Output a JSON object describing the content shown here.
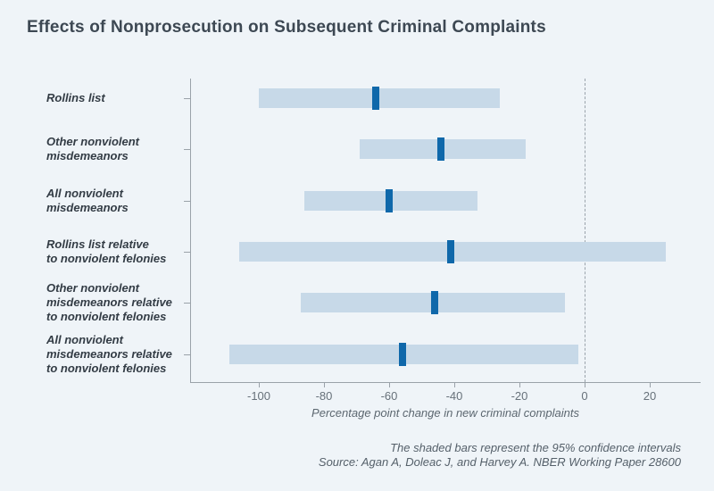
{
  "header": {
    "title": "Effects of Nonprosecution on Subsequent Criminal Complaints"
  },
  "chart_data": {
    "type": "bar",
    "subtype": "horizontal-confidence-interval",
    "title": "Effects of Nonprosecution on Subsequent Criminal Complaints",
    "xlabel": "Percentage point change in new criminal complaints",
    "ylabel": "",
    "xlim": [
      -121,
      36
    ],
    "x_ticks": [
      -100,
      -80,
      -60,
      -40,
      -20,
      0,
      20
    ],
    "zero_reference_line": 0,
    "grid": false,
    "legend": "none",
    "categories": [
      "Rollins list",
      "Other nonviolent misdemeanors",
      "All nonviolent misdemeanors",
      "Rollins list relative to nonviolent felonies",
      "Other nonviolent misdemeanors relative to nonviolent felonies",
      "All nonviolent misdemeanors relative to nonviolent felonies"
    ],
    "rows": [
      {
        "label_lines": [
          "Rollins list"
        ],
        "estimate": -64,
        "ci": [
          -100,
          -26
        ]
      },
      {
        "label_lines": [
          "Other nonviolent",
          "misdemeanors"
        ],
        "estimate": -44,
        "ci": [
          -69,
          -18
        ]
      },
      {
        "label_lines": [
          "All nonviolent",
          "misdemeanors"
        ],
        "estimate": -60,
        "ci": [
          -86,
          -33
        ]
      },
      {
        "label_lines": [
          "Rollins list relative",
          "to nonviolent felonies"
        ],
        "estimate": -41,
        "ci": [
          -106,
          25
        ]
      },
      {
        "label_lines": [
          "Other nonviolent",
          "misdemeanors relative",
          "to nonviolent felonies"
        ],
        "estimate": -46,
        "ci": [
          -87,
          -6
        ]
      },
      {
        "label_lines": [
          "All nonviolent",
          "misdemeanors relative",
          "to nonviolent felonies"
        ],
        "estimate": -56,
        "ci": [
          -109,
          -2
        ]
      }
    ]
  },
  "footer": {
    "note": "The shaded bars represent the 95% confidence intervals",
    "source": "Source: Agan A, Doleac J, and Harvey A. NBER Working Paper 28600"
  },
  "colors": {
    "background": "#eff4f8",
    "ci_bar": "#c7d9e8",
    "estimate_marker": "#0f68aa",
    "axis": "#9aa2a9",
    "zero_line": "#9aa3ab",
    "title_text": "#3d4853",
    "label_text": "#333c45",
    "tick_text": "#67717a",
    "footer_text": "#55606a"
  }
}
